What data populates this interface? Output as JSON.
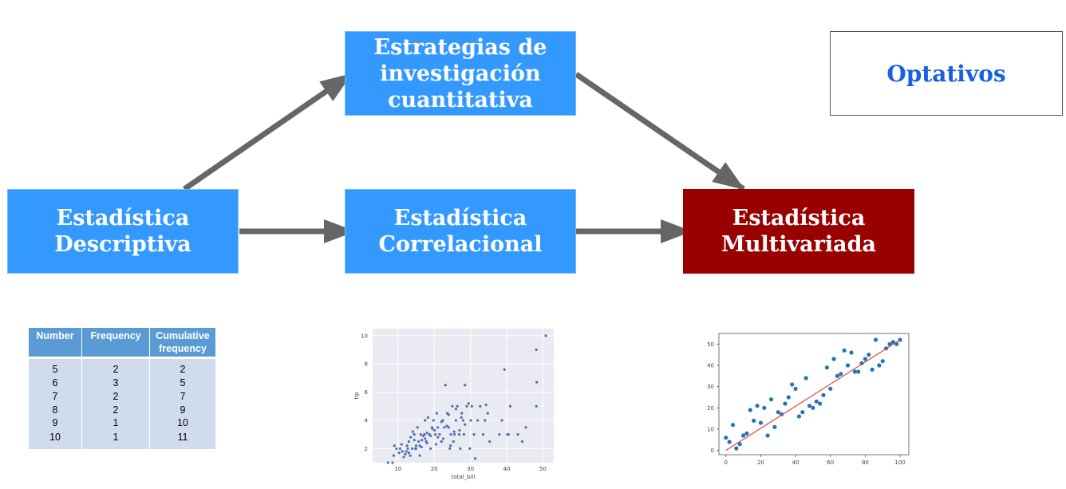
{
  "nodes": {
    "descriptiva": "Estadística\nDescriptiva",
    "estrategias": "Estrategias de\ninvestigación\ncuantitativa",
    "correlacional": "Estadística\nCorrelacional",
    "multivariada": "Estadística\nMultivariada",
    "optativos": "Optativos"
  },
  "colors": {
    "node_blue": "#3399ff",
    "node_red": "#990000",
    "arrow": "#666666",
    "optativos_text": "#1a5fe0"
  },
  "frequency_table": {
    "headers": [
      "Number",
      "Frequency",
      "Cumulative\nfrequency"
    ],
    "rows": [
      [
        "5",
        "2",
        "2"
      ],
      [
        "6",
        "3",
        "5"
      ],
      [
        "7",
        "2",
        "7"
      ],
      [
        "8",
        "2",
        "9"
      ],
      [
        "9",
        "1",
        "10"
      ],
      [
        "10",
        "1",
        "11"
      ]
    ]
  },
  "chart_data": [
    {
      "type": "scatter",
      "xlabel": "total_bill",
      "ylabel": "tip",
      "xticks": [
        10,
        20,
        30,
        40,
        50
      ],
      "yticks": [
        2,
        4,
        6,
        8,
        10
      ],
      "xlim": [
        3,
        53
      ],
      "ylim": [
        1,
        10.5
      ],
      "grid": true,
      "x": [
        7.25,
        8.5,
        9.6,
        10.3,
        10.6,
        11.2,
        11.6,
        12.0,
        12.5,
        12.7,
        13.0,
        13.4,
        13.9,
        14.1,
        14.5,
        14.8,
        15.0,
        15.4,
        15.7,
        16.0,
        16.3,
        16.6,
        17.0,
        17.3,
        17.5,
        17.8,
        18.0,
        18.3,
        18.7,
        19.0,
        19.4,
        19.8,
        20.1,
        20.3,
        20.7,
        21.0,
        21.5,
        22.0,
        22.4,
        22.8,
        23.1,
        23.6,
        24.0,
        24.3,
        24.6,
        25.0,
        25.3,
        25.6,
        26.0,
        26.4,
        26.9,
        27.2,
        27.6,
        28.0,
        28.2,
        28.5,
        29.0,
        29.8,
        30.1,
        30.4,
        31.0,
        31.3,
        32.0,
        32.7,
        33.5,
        34.0,
        34.3,
        34.8,
        35.3,
        38.0,
        38.7,
        39.4,
        40.2,
        40.5,
        41.0,
        43.1,
        44.3,
        45.3,
        48.2,
        48.2,
        48.3,
        50.8,
        8.8,
        9.0,
        12.3,
        13.5,
        15.0,
        16.5,
        18.0,
        19.5,
        21.0,
        22.5,
        23.5,
        24.5,
        26.0,
        27.0,
        28.5,
        11.0,
        13.0,
        14.5,
        16.0,
        17.5,
        19.0,
        20.5,
        22.0,
        24.0,
        25.5,
        27.5,
        29.5
      ],
      "y": [
        1.0,
        1.0,
        2.0,
        1.7,
        2.0,
        1.8,
        1.4,
        1.6,
        2.2,
        2.0,
        2.5,
        1.5,
        2.0,
        3.2,
        2.6,
        2.0,
        2.2,
        3.5,
        2.5,
        2.2,
        3.0,
        2.6,
        2.9,
        3.0,
        4.0,
        2.5,
        3.1,
        4.2,
        3.0,
        2.0,
        3.5,
        4.0,
        3.3,
        3.0,
        4.5,
        3.5,
        3.0,
        2.5,
        4.0,
        3.5,
        6.5,
        4.5,
        3.5,
        2.0,
        3.0,
        5.0,
        2.5,
        3.0,
        4.0,
        5.0,
        3.0,
        2.0,
        4.5,
        4.0,
        3.0,
        6.5,
        5.0,
        2.0,
        4.0,
        5.0,
        3.0,
        1.3,
        4.0,
        5.0,
        3.0,
        4.0,
        5.1,
        4.5,
        2.5,
        3.0,
        4.0,
        7.6,
        3.0,
        3.0,
        5.0,
        3.0,
        2.5,
        3.5,
        9.0,
        5.0,
        6.7,
        10.0,
        1.5,
        2.2,
        1.8,
        2.8,
        2.0,
        2.1,
        2.4,
        3.4,
        2.8,
        2.7,
        3.6,
        2.2,
        4.8,
        3.3,
        3.7,
        2.3,
        1.7,
        3.0,
        1.5,
        2.7,
        2.9,
        2.3,
        3.9,
        4.4,
        3.2,
        4.2,
        5.2
      ]
    },
    {
      "type": "scatter",
      "xticks": [
        0,
        20,
        40,
        60,
        80,
        100
      ],
      "yticks": [
        0,
        10,
        20,
        30,
        40,
        50
      ],
      "xlim": [
        -4,
        105
      ],
      "ylim": [
        -2,
        55
      ],
      "grid": false,
      "x": [
        0,
        2,
        4,
        6,
        8,
        10,
        12,
        14,
        16,
        18,
        20,
        22,
        24,
        26,
        28,
        30,
        32,
        34,
        36,
        38,
        40,
        42,
        44,
        46,
        48,
        50,
        52,
        54,
        56,
        58,
        60,
        62,
        64,
        66,
        68,
        70,
        72,
        74,
        76,
        78,
        80,
        82,
        84,
        86,
        88,
        90,
        92,
        94,
        96,
        98,
        100
      ],
      "y": [
        6,
        4,
        12,
        1,
        3,
        7,
        8,
        19,
        14,
        21,
        13,
        20,
        7,
        24,
        11,
        18,
        17,
        22,
        25,
        31,
        29,
        16,
        18,
        34,
        21,
        20,
        23,
        22,
        26,
        39,
        29,
        43,
        35,
        36,
        47,
        40,
        46,
        37,
        37,
        41,
        43,
        45,
        38,
        52,
        40,
        42,
        48,
        50,
        51,
        50,
        52
      ],
      "fit_line": {
        "x": [
          0,
          100
        ],
        "y": [
          0,
          52
        ]
      }
    }
  ]
}
